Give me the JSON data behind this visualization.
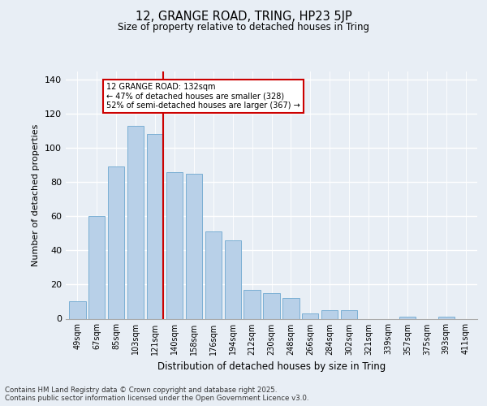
{
  "title1": "12, GRANGE ROAD, TRING, HP23 5JP",
  "title2": "Size of property relative to detached houses in Tring",
  "xlabel": "Distribution of detached houses by size in Tring",
  "ylabel": "Number of detached properties",
  "categories": [
    "49sqm",
    "67sqm",
    "85sqm",
    "103sqm",
    "121sqm",
    "140sqm",
    "158sqm",
    "176sqm",
    "194sqm",
    "212sqm",
    "230sqm",
    "248sqm",
    "266sqm",
    "284sqm",
    "302sqm",
    "321sqm",
    "339sqm",
    "357sqm",
    "375sqm",
    "393sqm",
    "411sqm"
  ],
  "values": [
    10,
    60,
    89,
    113,
    108,
    86,
    85,
    51,
    46,
    17,
    15,
    12,
    3,
    5,
    5,
    0,
    0,
    1,
    0,
    1,
    0
  ],
  "bar_color": "#b8d0e8",
  "bar_edge_color": "#7bafd4",
  "vline_color": "#cc0000",
  "annotation_title": "12 GRANGE ROAD: 132sqm",
  "annotation_line2": "← 47% of detached houses are smaller (328)",
  "annotation_line3": "52% of semi-detached houses are larger (367) →",
  "annotation_box_color": "#cc0000",
  "ylim": [
    0,
    145
  ],
  "yticks": [
    0,
    20,
    40,
    60,
    80,
    100,
    120,
    140
  ],
  "background_color": "#e8eef5",
  "grid_color": "#ffffff",
  "footer1": "Contains HM Land Registry data © Crown copyright and database right 2025.",
  "footer2": "Contains public sector information licensed under the Open Government Licence v3.0."
}
